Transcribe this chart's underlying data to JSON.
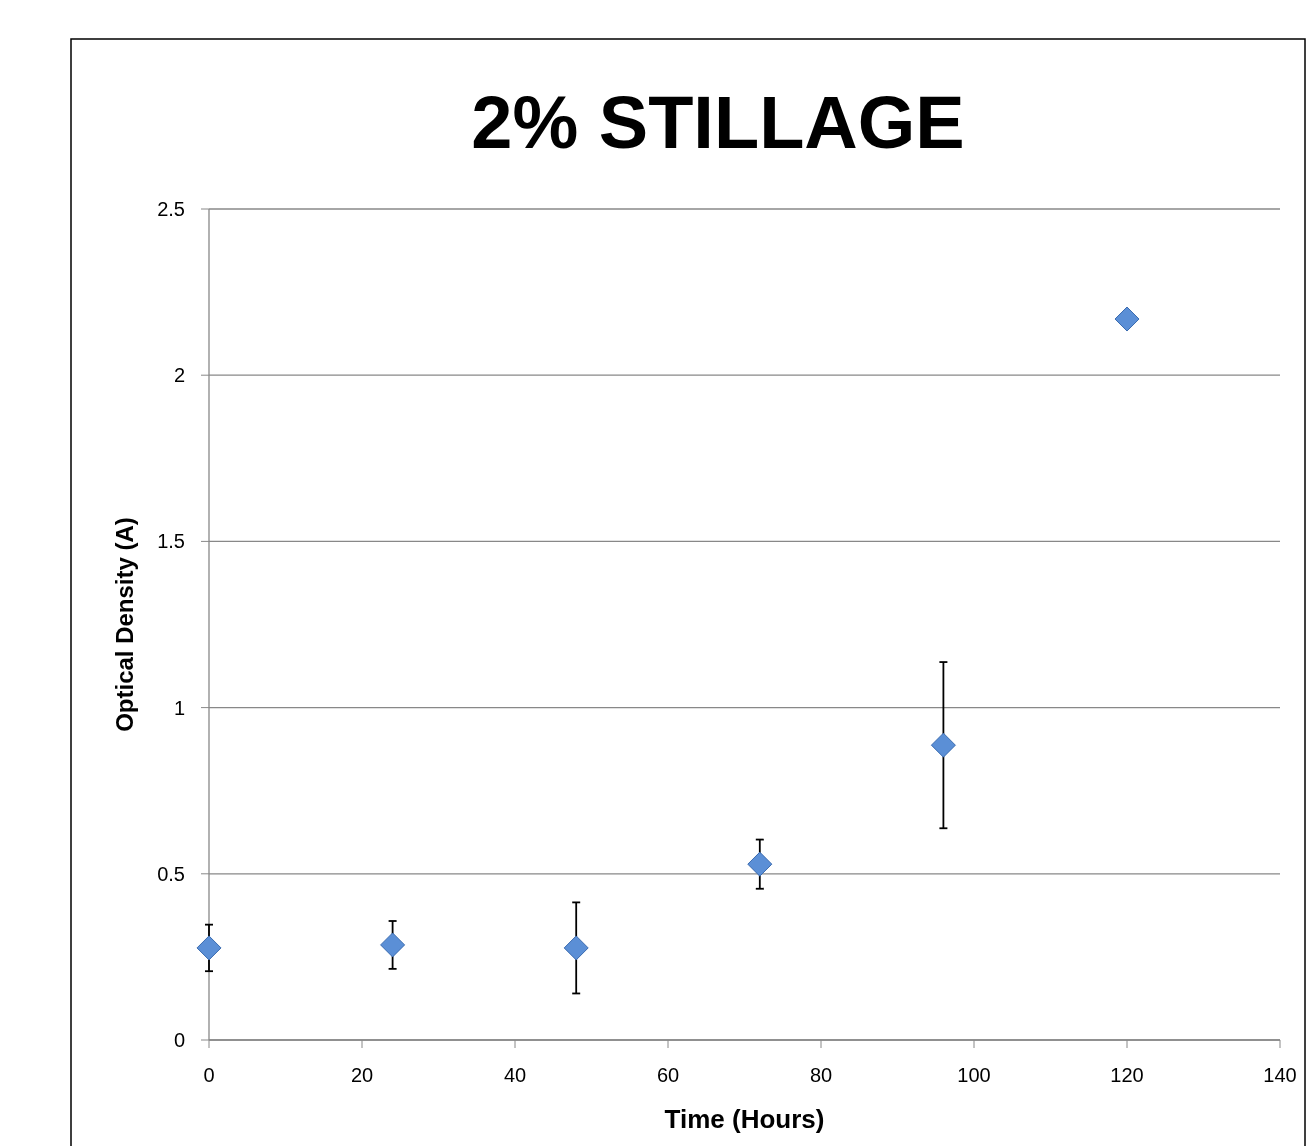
{
  "chart_data": {
    "type": "scatter",
    "title": "2% STILLAGE",
    "xlabel": "Time  (Hours)",
    "ylabel": "Optical Density (A)",
    "x": [
      0,
      24,
      48,
      72,
      96,
      120
    ],
    "series": [
      {
        "color": "#5b8fd6",
        "values": [
          0.277,
          0.286,
          0.277,
          0.529,
          0.887,
          2.169
        ],
        "errors": [
          0.07,
          0.072,
          0.137,
          0.074,
          0.25,
          null
        ]
      }
    ],
    "xlim": [
      0,
      140
    ],
    "xticks": [
      0,
      20,
      40,
      60,
      80,
      100,
      120,
      140
    ],
    "ylim": [
      0,
      2.5
    ],
    "yticks": [
      0,
      0.5,
      1,
      1.5,
      2,
      2.5
    ],
    "grid": "y",
    "marker": "diamond"
  }
}
